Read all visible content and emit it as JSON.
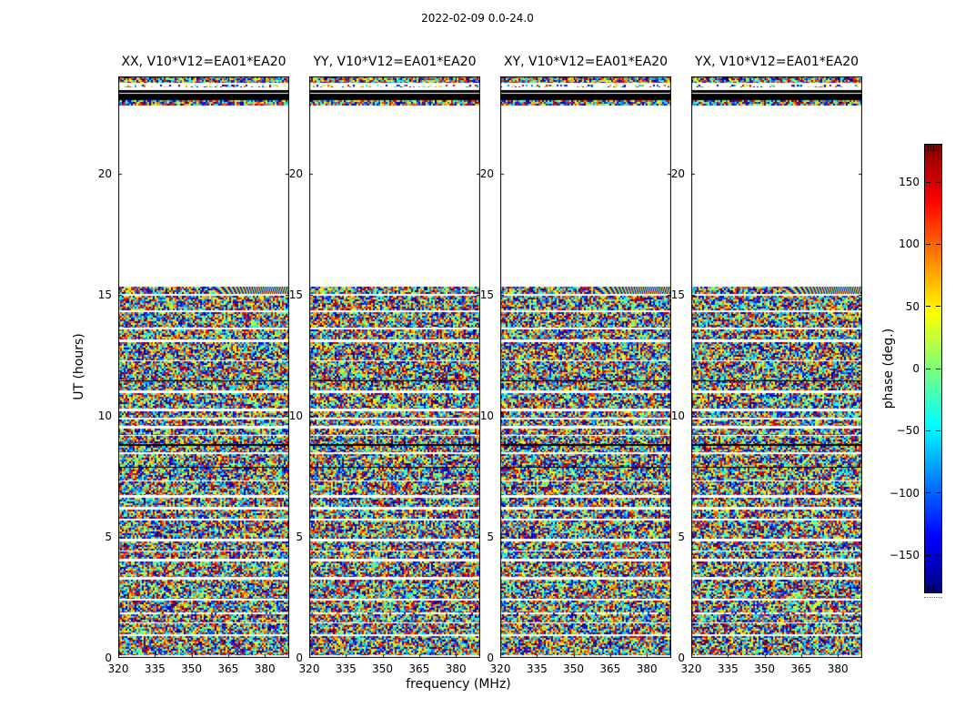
{
  "figure": {
    "title": "2022-02-09 0.0-24.0",
    "background_color": "#ffffff",
    "frame_color": "#000000"
  },
  "panels": [
    {
      "title": "XX, V10*V12=EA01*EA20",
      "has_fringe": true
    },
    {
      "title": "YY, V10*V12=EA01*EA20",
      "has_fringe": false
    },
    {
      "title": "XY, V10*V12=EA01*EA20",
      "has_fringe": true
    },
    {
      "title": "YX, V10*V12=EA01*EA20",
      "has_fringe": true
    }
  ],
  "axes": {
    "xlabel": "frequency (MHz)",
    "ylabel": "UT (hours)",
    "xticks": [
      320,
      335,
      350,
      365,
      380
    ],
    "yticks": [
      0,
      5,
      10,
      15,
      20
    ],
    "xlim": [
      320,
      390
    ],
    "ylim": [
      0,
      24
    ]
  },
  "colorbar": {
    "label": "phase (deg.)",
    "ticks": [
      150,
      100,
      50,
      0,
      -50,
      -100,
      -150
    ],
    "vmin": -180,
    "vmax": 180,
    "colormap": "jet",
    "stops": [
      {
        "p": 0.0,
        "c": "#00007f"
      },
      {
        "p": 0.125,
        "c": "#0000ff"
      },
      {
        "p": 0.375,
        "c": "#00ffff"
      },
      {
        "p": 0.5,
        "c": "#7cff79"
      },
      {
        "p": 0.625,
        "c": "#ffff00"
      },
      {
        "p": 0.875,
        "c": "#ff0000"
      },
      {
        "p": 1.0,
        "c": "#7f0000"
      }
    ]
  },
  "chart_data": {
    "type": "heatmap",
    "title": "2022-02-09 0.0-24.0",
    "panels": [
      "XX, V10*V12=EA01*EA20",
      "YY, V10*V12=EA01*EA20",
      "XY, V10*V12=EA01*EA20",
      "YX, V10*V12=EA01*EA20"
    ],
    "xlabel": "frequency (MHz)",
    "x_range": [
      320,
      390
    ],
    "xticks": [
      320,
      335,
      350,
      365,
      380
    ],
    "ylabel": "UT (hours)",
    "y_range": [
      0,
      24
    ],
    "yticks": [
      0,
      5,
      10,
      15,
      20
    ],
    "value_label": "phase (deg.)",
    "value_range": [
      -180,
      180
    ],
    "value_ticks": [
      150,
      100,
      50,
      0,
      -50,
      -100,
      -150
    ],
    "colormap": "jet",
    "legend_position": "right colorbar",
    "grid": false,
    "content": [
      {
        "ut_from": 0.0,
        "ut_to": 14.9,
        "description": "random (uniform +/-180 deg) phase speckle across all frequencies, interrupted by narrow horizontal white flagged gaps, sparse dotted rows and occasional 1px black rows"
      },
      {
        "ut_from": 14.9,
        "ut_to": 15.3,
        "description": "noise band showing coherent diagonal phase fringes at upper frequencies (~350-390 MHz) in XX, XY and YX panels; plain noise in YY"
      },
      {
        "ut_from": 15.3,
        "ut_to": 22.6,
        "description": "no data (white gap)"
      },
      {
        "ut_from": 22.6,
        "ut_to": 24.0,
        "description": "dense noise rows, a sparse dotted row, a thin black row and a thick black flagged band near UT 23.2-23.5"
      }
    ]
  }
}
